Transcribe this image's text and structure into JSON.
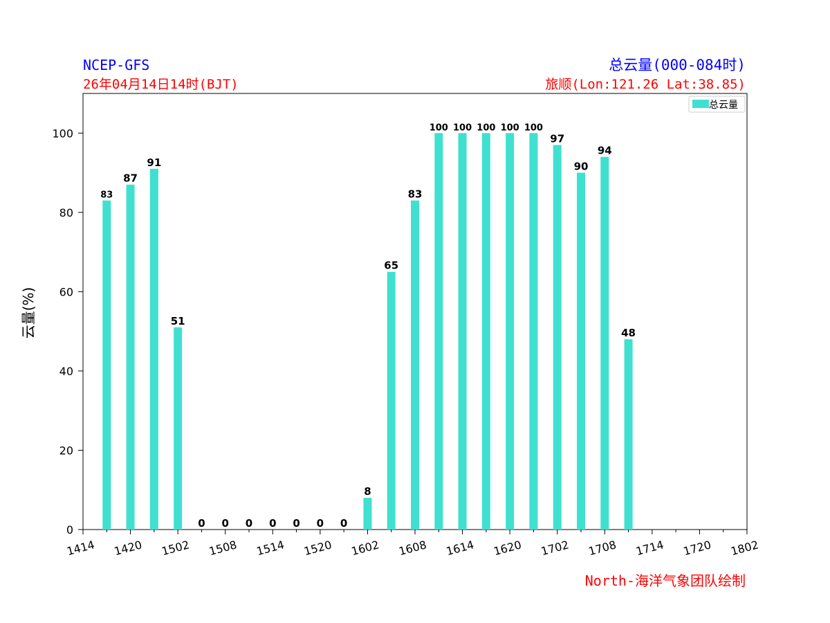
{
  "header": {
    "model": "NCEP-GFS",
    "init_time": "26年04月14日14时(BJT)",
    "product": "总云量(000-084时)",
    "location": "旅顺(Lon:121.26 Lat:38.85)",
    "credit": "North-海洋气象团队绘制"
  },
  "colors": {
    "bar": "#40E0D0",
    "model_text": "#0000ff",
    "product_text": "#0000ff",
    "init_text": "#ff0000",
    "location_text": "#ff0000",
    "credit_text": "#ff0000"
  },
  "chart_data": {
    "type": "bar",
    "title": "",
    "xlabel": "",
    "ylabel": "云量(%)",
    "ylim": [
      0,
      110
    ],
    "yticks": [
      0,
      20,
      40,
      60,
      80,
      100
    ],
    "xticks": [
      "1414",
      "1420",
      "1502",
      "1508",
      "1514",
      "1520",
      "1602",
      "1608",
      "1614",
      "1620",
      "1702",
      "1708",
      "1714",
      "1720",
      "1802"
    ],
    "legend": {
      "label": "总云量",
      "position": "top-right"
    },
    "grid": false,
    "series": [
      {
        "name": "总云量",
        "categories": [
          "1417",
          "1420",
          "1423",
          "1502",
          "1505",
          "1508",
          "1511",
          "1514",
          "1517",
          "1520",
          "1523",
          "1602",
          "1605",
          "1608",
          "1611",
          "1614",
          "1617",
          "1620",
          "1623",
          "1702",
          "1705",
          "1708",
          "1711"
        ],
        "values": [
          83,
          87,
          91,
          51,
          0,
          0,
          0,
          0,
          0,
          0,
          0,
          8,
          65,
          83,
          100,
          100,
          100,
          100,
          100,
          97,
          90,
          94,
          48
        ]
      }
    ]
  }
}
